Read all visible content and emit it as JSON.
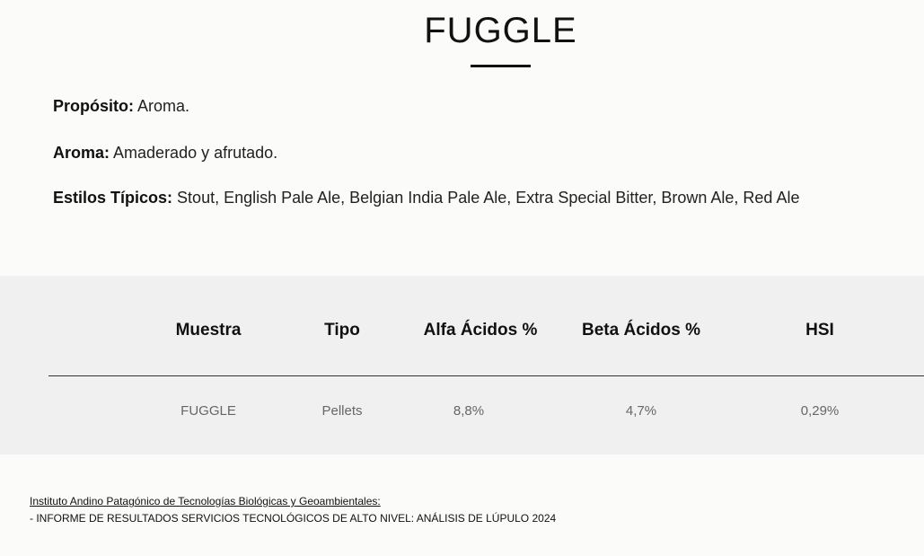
{
  "title": "FUGGLE",
  "info": [
    {
      "label": "Propósito:",
      "value": "Aroma."
    },
    {
      "label": "Aroma:",
      "value": "Amaderado y afrutado."
    },
    {
      "label": "Estilos Típicos:",
      "value": "Stout, English Pale Ale, Belgian India Pale Ale, Extra Special Bitter, Brown Ale, Red Ale"
    }
  ],
  "table": {
    "headers": [
      "Muestra",
      "Tipo",
      "Alfa Ácidos %",
      "Beta Ácidos %",
      "HSI"
    ],
    "rows": [
      [
        "FUGGLE",
        "Pellets",
        "8,8%",
        "4,7%",
        "0,29%"
      ]
    ]
  },
  "source": {
    "link": "Instituto Andino Patagónico de Tecnologías Biológicas y Geoambientales:",
    "text": "- INFORME DE RESULTADOS SERVICIOS TECNOLÓGICOS DE ALTO NIVEL: ANÁLISIS DE LÚPULO 2024"
  }
}
